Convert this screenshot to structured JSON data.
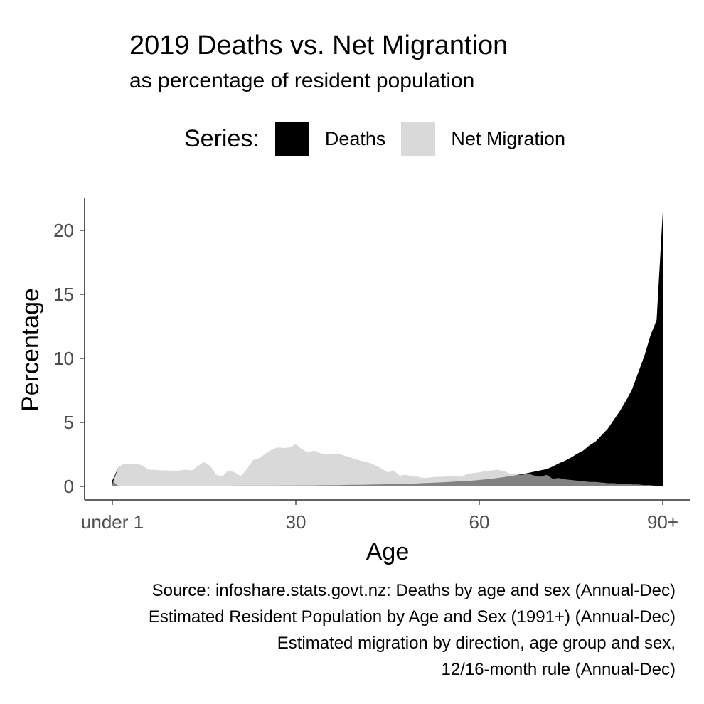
{
  "chart_data": {
    "type": "area",
    "title": "2019 Deaths vs. Net Migrantion",
    "subtitle": "as percentage of resident population",
    "xlabel": "Age",
    "ylabel": "Percentage",
    "legend": {
      "title": "Series:",
      "placement": "top"
    },
    "x_tick_values": [
      0,
      30,
      60,
      90
    ],
    "x_tick_labels": [
      "under 1",
      "30",
      "60",
      "90+"
    ],
    "y_ticks": [
      "0",
      "5",
      "10",
      "15",
      "20"
    ],
    "xlim": [
      0,
      90
    ],
    "ylim": [
      -1,
      22.5
    ],
    "grid": false,
    "x": [
      0,
      1,
      2,
      3,
      4,
      5,
      6,
      7,
      8,
      9,
      10,
      11,
      12,
      13,
      14,
      15,
      16,
      17,
      18,
      19,
      20,
      21,
      22,
      23,
      24,
      25,
      26,
      27,
      28,
      29,
      30,
      31,
      32,
      33,
      34,
      35,
      36,
      37,
      38,
      39,
      40,
      41,
      42,
      43,
      44,
      45,
      46,
      47,
      48,
      49,
      50,
      51,
      52,
      53,
      54,
      55,
      56,
      57,
      58,
      59,
      60,
      61,
      62,
      63,
      64,
      65,
      66,
      67,
      68,
      69,
      70,
      71,
      72,
      73,
      74,
      75,
      76,
      77,
      78,
      79,
      80,
      81,
      82,
      83,
      84,
      85,
      86,
      87,
      88,
      89,
      90
    ],
    "series": [
      {
        "name": "Deaths",
        "color": "#000000",
        "values": [
          0.45,
          0.03,
          0.02,
          0.01,
          0.01,
          0.01,
          0.01,
          0.01,
          0.01,
          0.01,
          0.01,
          0.01,
          0.01,
          0.02,
          0.02,
          0.03,
          0.03,
          0.04,
          0.05,
          0.05,
          0.06,
          0.06,
          0.06,
          0.06,
          0.06,
          0.06,
          0.06,
          0.07,
          0.07,
          0.07,
          0.07,
          0.08,
          0.08,
          0.08,
          0.09,
          0.09,
          0.1,
          0.1,
          0.11,
          0.12,
          0.12,
          0.13,
          0.14,
          0.15,
          0.16,
          0.17,
          0.18,
          0.19,
          0.21,
          0.22,
          0.24,
          0.26,
          0.28,
          0.3,
          0.32,
          0.35,
          0.37,
          0.4,
          0.43,
          0.46,
          0.5,
          0.55,
          0.6,
          0.66,
          0.72,
          0.8,
          0.88,
          0.96,
          1.05,
          1.15,
          1.25,
          1.35,
          1.55,
          1.8,
          2.0,
          2.25,
          2.55,
          2.8,
          3.2,
          3.5,
          4.0,
          4.5,
          5.2,
          5.9,
          6.7,
          7.6,
          8.9,
          10.2,
          11.8,
          13.0,
          21.4
        ]
      },
      {
        "name": "Net Migration",
        "color": "#d9d9d9",
        "values": [
          0.2,
          1.5,
          1.8,
          1.7,
          1.8,
          1.6,
          1.3,
          1.3,
          1.25,
          1.25,
          1.2,
          1.25,
          1.3,
          1.25,
          1.6,
          1.9,
          1.6,
          0.9,
          0.8,
          1.25,
          1.1,
          0.8,
          1.35,
          2.05,
          2.2,
          2.55,
          2.85,
          3.05,
          3.0,
          3.05,
          3.3,
          2.9,
          2.65,
          2.8,
          2.6,
          2.5,
          2.55,
          2.55,
          2.4,
          2.25,
          2.1,
          1.95,
          1.85,
          1.65,
          1.4,
          1.1,
          1.25,
          0.85,
          0.9,
          0.8,
          0.75,
          0.65,
          0.7,
          0.75,
          0.75,
          0.8,
          0.85,
          0.75,
          0.95,
          1.05,
          1.1,
          1.2,
          1.25,
          1.3,
          1.2,
          1.0,
          0.95,
          0.9,
          1.0,
          0.85,
          0.75,
          0.9,
          0.6,
          0.65,
          0.55,
          0.5,
          0.45,
          0.4,
          0.35,
          0.35,
          0.3,
          0.25,
          0.25,
          0.2,
          0.2,
          0.15,
          0.15,
          0.1,
          0.1,
          0.05,
          0.05
        ]
      }
    ],
    "caption": [
      "Source: infoshare.stats.govt.nz: Deaths by age and sex (Annual-Dec)",
      "Estimated Resident Population by Age and Sex (1991+) (Annual-Dec)",
      "Estimated migration by direction, age group and sex,",
      "12/16-month rule (Annual-Dec)"
    ]
  }
}
